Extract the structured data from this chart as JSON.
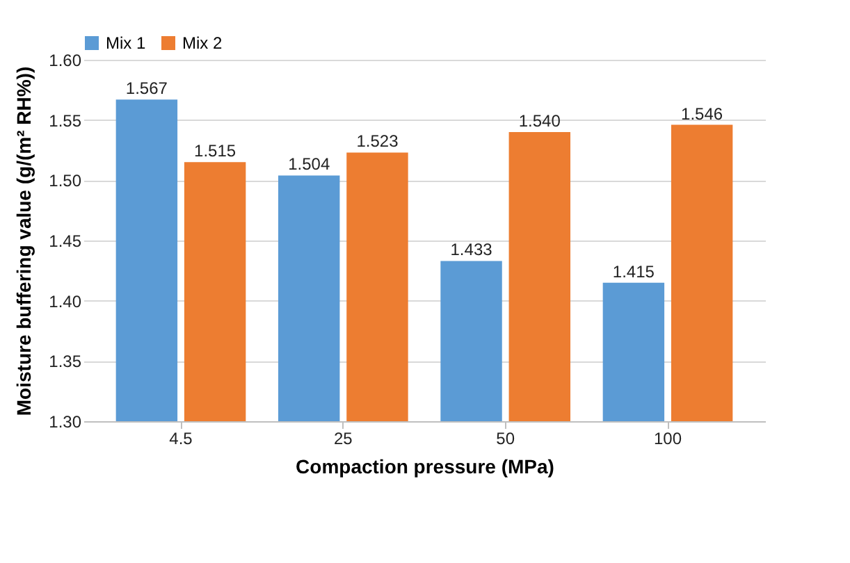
{
  "chart_data": {
    "type": "bar",
    "xlabel": "Compaction pressure (MPa)",
    "ylabel": "Moisture buffering value (g/(m² RH%))",
    "categories": [
      "4.5",
      "25",
      "50",
      "100"
    ],
    "series": [
      {
        "name": "Mix 1",
        "color": "#5b9bd5",
        "values": [
          1.567,
          1.504,
          1.433,
          1.415
        ],
        "value_labels": [
          "1.567",
          "1.504",
          "1.433",
          "1.415"
        ]
      },
      {
        "name": "Mix 2",
        "color": "#ed7d31",
        "values": [
          1.515,
          1.523,
          1.54,
          1.546
        ],
        "value_labels": [
          "1.515",
          "1.523",
          "1.540",
          "1.546"
        ]
      }
    ],
    "ylim": [
      1.3,
      1.6
    ],
    "yticks": [
      {
        "value": 1.3,
        "label": "1.30"
      },
      {
        "value": 1.35,
        "label": "1.35"
      },
      {
        "value": 1.4,
        "label": "1.40"
      },
      {
        "value": 1.45,
        "label": "1.45"
      },
      {
        "value": 1.5,
        "label": "1.50"
      },
      {
        "value": 1.55,
        "label": "1.55"
      },
      {
        "value": 1.6,
        "label": "1.60"
      }
    ],
    "grid": "y",
    "legend": "top"
  }
}
